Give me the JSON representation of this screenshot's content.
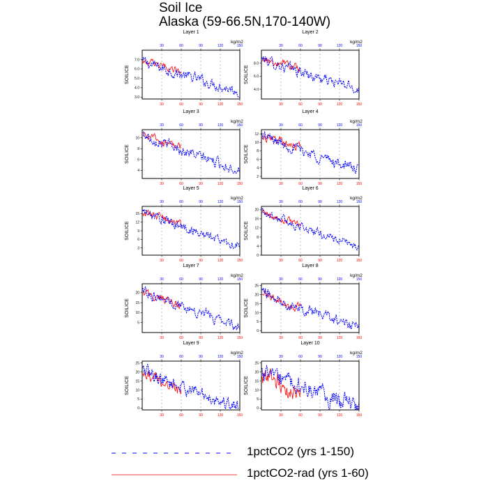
{
  "figure": {
    "title_line1": "Soil Ice",
    "title_line2": "Alaska (59-66.5N,170-140W)"
  },
  "legend": {
    "series1_label": "1pctCO2 (yrs 1-150)",
    "series2_label": "1pctCO2-rad (yrs 1-60)",
    "series1_color": "#0000ff",
    "series2_color": "#ff0000"
  },
  "chart_data": [
    {
      "type": "line",
      "title": "Layer 1",
      "ylabel": "SOILICE",
      "top_axis_label": "kg/m2",
      "xlim": [
        0,
        150
      ],
      "ylim": [
        2.8,
        8.0
      ],
      "yticks": [
        3.0,
        4.0,
        5.0,
        6.0,
        7.0
      ],
      "ytick_labels": [
        "3.0",
        "4.0",
        "5.0",
        "6.0",
        "7.0"
      ],
      "xticks_top": [
        30,
        60,
        90,
        120,
        150
      ],
      "xticks_bottom": [
        30,
        60,
        90,
        120,
        150
      ],
      "series": [
        {
          "x_range": [
            1,
            150
          ],
          "start": 6.8,
          "end": 3.6,
          "noise": 0.35
        },
        {
          "x_range": [
            1,
            60
          ],
          "start": 6.8,
          "end": 5.8,
          "noise": 0.25
        }
      ]
    },
    {
      "type": "line",
      "title": "Layer 2",
      "ylabel": "SOILICE",
      "top_axis_label": "kg/m2",
      "xlim": [
        0,
        150
      ],
      "ylim": [
        2.5,
        10.0
      ],
      "yticks": [
        4.0,
        6.0,
        8.0
      ],
      "ytick_labels": [
        "4.0",
        "6.0",
        "8.0"
      ],
      "xticks_top": [
        30,
        60,
        90,
        120,
        150
      ],
      "xticks_bottom": [
        30,
        60,
        90,
        120,
        150
      ],
      "series": [
        {
          "x_range": [
            1,
            150
          ],
          "start": 8.7,
          "end": 4.0,
          "noise": 0.5
        },
        {
          "x_range": [
            1,
            60
          ],
          "start": 8.6,
          "end": 7.2,
          "noise": 0.4
        }
      ]
    },
    {
      "type": "line",
      "title": "Layer 3",
      "ylabel": "SOILICE",
      "top_axis_label": "kg/m2",
      "xlim": [
        0,
        150
      ],
      "ylim": [
        2.5,
        11.5
      ],
      "yticks": [
        4,
        6,
        8,
        10
      ],
      "ytick_labels": [
        "4",
        "6",
        "8",
        "10"
      ],
      "xticks_top": [
        30,
        60,
        90,
        120,
        150
      ],
      "xticks_bottom": [
        30,
        60,
        90,
        120,
        150
      ],
      "series": [
        {
          "x_range": [
            1,
            150
          ],
          "start": 10.7,
          "end": 4.0,
          "noise": 0.6
        },
        {
          "x_range": [
            1,
            60
          ],
          "start": 10.7,
          "end": 8.3,
          "noise": 0.45
        }
      ]
    },
    {
      "type": "line",
      "title": "Layer 4",
      "ylabel": "SOILICE",
      "top_axis_label": "kg/m2",
      "xlim": [
        0,
        150
      ],
      "ylim": [
        1.5,
        13.0
      ],
      "yticks": [
        2,
        4,
        6,
        8,
        10,
        12
      ],
      "ytick_labels": [
        "2",
        "4",
        "6",
        "8",
        "10",
        "12"
      ],
      "xticks_top": [
        30,
        60,
        90,
        120,
        150
      ],
      "xticks_bottom": [
        30,
        60,
        90,
        120,
        150
      ],
      "series": [
        {
          "x_range": [
            1,
            150
          ],
          "start": 11.8,
          "end": 3.5,
          "noise": 0.8
        },
        {
          "x_range": [
            1,
            60
          ],
          "start": 11.6,
          "end": 9.0,
          "noise": 0.6
        }
      ]
    },
    {
      "type": "line",
      "title": "Layer 5",
      "ylabel": "SOILICE",
      "top_axis_label": "kg/m2",
      "xlim": [
        0,
        150
      ],
      "ylim": [
        0.5,
        17.5
      ],
      "yticks": [
        3,
        6,
        9,
        12,
        15
      ],
      "ytick_labels": [
        "3",
        "6",
        "9",
        "12",
        "15"
      ],
      "xticks_top": [
        30,
        60,
        90,
        120,
        150
      ],
      "xticks_bottom": [
        30,
        60,
        90,
        120,
        150
      ],
      "series": [
        {
          "x_range": [
            1,
            150
          ],
          "start": 15.8,
          "end": 3.5,
          "noise": 1.0
        },
        {
          "x_range": [
            1,
            60
          ],
          "start": 15.6,
          "end": 11.5,
          "noise": 0.8
        }
      ]
    },
    {
      "type": "line",
      "title": "Layer 6",
      "ylabel": "SOILICE",
      "top_axis_label": "kg/m2",
      "xlim": [
        0,
        150
      ],
      "ylim": [
        0,
        21.5
      ],
      "yticks": [
        0,
        4,
        8,
        12,
        16,
        20
      ],
      "ytick_labels": [
        "0",
        "4",
        "8",
        "12",
        "16",
        "20"
      ],
      "xticks_top": [
        30,
        60,
        90,
        120,
        150
      ],
      "xticks_bottom": [
        30,
        60,
        90,
        120,
        150
      ],
      "series": [
        {
          "x_range": [
            1,
            150
          ],
          "start": 19.5,
          "end": 3.5,
          "noise": 1.2
        },
        {
          "x_range": [
            1,
            60
          ],
          "start": 19.2,
          "end": 13.5,
          "noise": 1.0
        }
      ]
    },
    {
      "type": "line",
      "title": "Layer 7",
      "ylabel": "SOILICE",
      "top_axis_label": "kg/m2",
      "xlim": [
        0,
        150
      ],
      "ylim": [
        0,
        24.5
      ],
      "yticks": [
        5,
        10,
        15,
        20
      ],
      "ytick_labels": [
        "5",
        "10",
        "15",
        "20"
      ],
      "xticks_top": [
        30,
        60,
        90,
        120,
        150
      ],
      "xticks_bottom": [
        30,
        60,
        90,
        120,
        150
      ],
      "series": [
        {
          "x_range": [
            1,
            150
          ],
          "start": 21.5,
          "end": 3.0,
          "noise": 1.6
        },
        {
          "x_range": [
            1,
            60
          ],
          "start": 20.5,
          "end": 13.5,
          "noise": 1.4
        }
      ]
    },
    {
      "type": "line",
      "title": "Layer 8",
      "ylabel": "SOILICE",
      "top_axis_label": "kg/m2",
      "xlim": [
        0,
        150
      ],
      "ylim": [
        -1,
        26
      ],
      "yticks": [
        0,
        5,
        10,
        15,
        20,
        25
      ],
      "ytick_labels": [
        "0",
        "5",
        "10",
        "15",
        "20",
        "25"
      ],
      "xticks_top": [
        30,
        60,
        90,
        120,
        150
      ],
      "xticks_bottom": [
        30,
        60,
        90,
        120,
        150
      ],
      "series": [
        {
          "x_range": [
            1,
            150
          ],
          "start": 22.0,
          "end": 1.5,
          "noise": 1.9
        },
        {
          "x_range": [
            1,
            60
          ],
          "start": 21.0,
          "end": 12.5,
          "noise": 1.7
        }
      ]
    },
    {
      "type": "line",
      "title": "Layer 9",
      "ylabel": "SOILICE",
      "top_axis_label": "kg/m2",
      "xlim": [
        0,
        150
      ],
      "ylim": [
        -1,
        26
      ],
      "yticks": [
        0,
        5,
        10,
        15,
        20,
        25
      ],
      "ytick_labels": [
        "0",
        "5",
        "10",
        "15",
        "20",
        "25"
      ],
      "xticks_top": [
        30,
        60,
        90,
        120,
        150
      ],
      "xticks_bottom": [
        30,
        60,
        90,
        120,
        150
      ],
      "series": [
        {
          "x_range": [
            1,
            150
          ],
          "start": 21.0,
          "end": 0.3,
          "noise": 2.3
        },
        {
          "x_range": [
            1,
            60
          ],
          "start": 20.0,
          "end": 9.5,
          "noise": 2.2
        }
      ]
    },
    {
      "type": "line",
      "title": "Layer 10",
      "ylabel": "SOILICE",
      "top_axis_label": "kg/m2",
      "xlim": [
        0,
        150
      ],
      "ylim": [
        -1,
        26
      ],
      "yticks": [
        0,
        5,
        10,
        15,
        20,
        25
      ],
      "ytick_labels": [
        "0",
        "5",
        "10",
        "15",
        "20",
        "25"
      ],
      "xticks_top": [
        30,
        60,
        90,
        120,
        150
      ],
      "xticks_bottom": [
        30,
        60,
        90,
        120,
        150
      ],
      "series": [
        {
          "x_range": [
            1,
            150
          ],
          "start": 20.0,
          "end": 0.2,
          "noise": 3.2
        },
        {
          "x_range": [
            1,
            60
          ],
          "start": 18.5,
          "end": 7.5,
          "noise": 3.3
        }
      ]
    }
  ]
}
